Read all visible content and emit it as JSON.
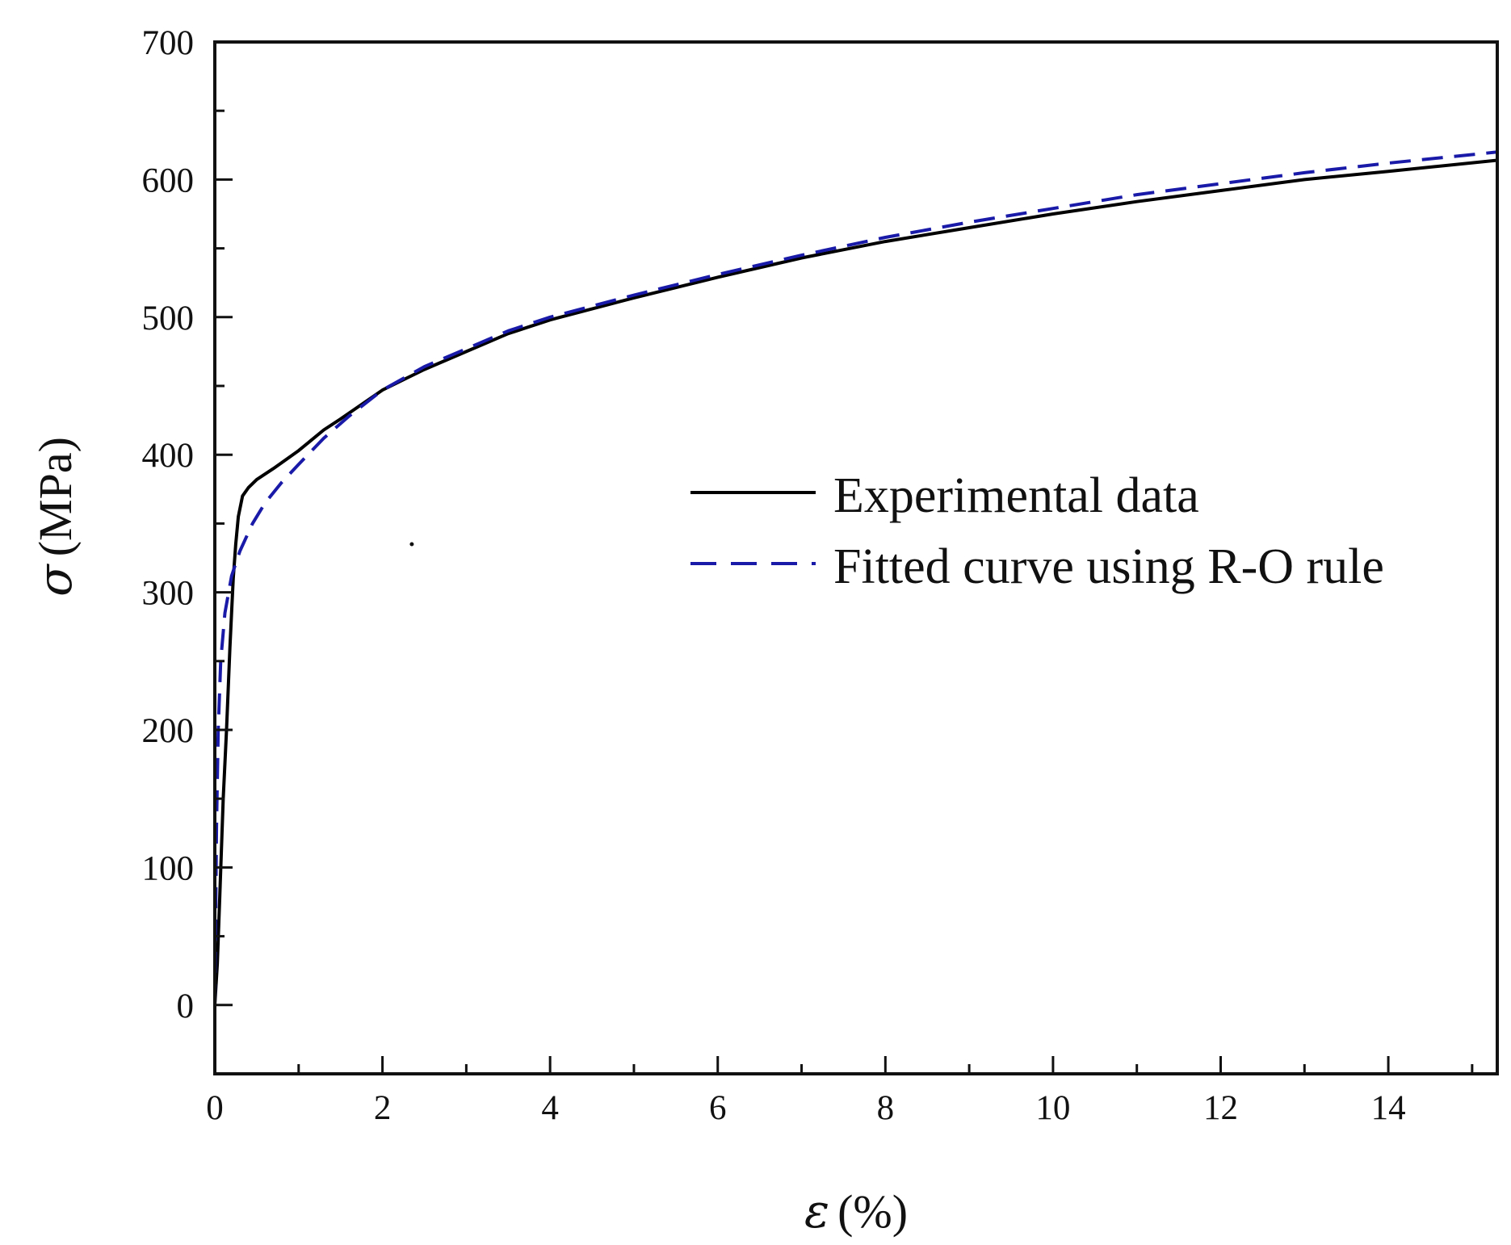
{
  "chart_data": {
    "type": "line",
    "title": "",
    "xlabel": {
      "symbol": "ε",
      "unit": "(%)"
    },
    "ylabel": {
      "symbol": "σ",
      "unit": "(MPa)"
    },
    "xlim": [
      0,
      15.3
    ],
    "ylim": [
      -50,
      700
    ],
    "x_ticks": [
      {
        "value": 0,
        "label": "0"
      },
      {
        "value": 2,
        "label": "2"
      },
      {
        "value": 4,
        "label": "4"
      },
      {
        "value": 6,
        "label": "6"
      },
      {
        "value": 8,
        "label": "8"
      },
      {
        "value": 10,
        "label": "10"
      },
      {
        "value": 12,
        "label": "12"
      },
      {
        "value": 14,
        "label": "14"
      }
    ],
    "x_minor_ticks": [
      1,
      3,
      5,
      7,
      9,
      11,
      13,
      15
    ],
    "y_ticks": [
      {
        "value": 0,
        "label": "0"
      },
      {
        "value": 100,
        "label": "100"
      },
      {
        "value": 200,
        "label": "200"
      },
      {
        "value": 300,
        "label": "300"
      },
      {
        "value": 400,
        "label": "400"
      },
      {
        "value": 500,
        "label": "500"
      },
      {
        "value": 600,
        "label": "600"
      },
      {
        "value": 700,
        "label": "700"
      }
    ],
    "y_minor_ticks": [
      50,
      150,
      250,
      350,
      450,
      550,
      650
    ],
    "grid": false,
    "legend_position": "center-right",
    "series": [
      {
        "name": "Experimental data",
        "color": "#000000",
        "style": "solid",
        "points": [
          [
            0.0,
            0
          ],
          [
            0.03,
            30
          ],
          [
            0.06,
            80
          ],
          [
            0.1,
            150
          ],
          [
            0.14,
            200
          ],
          [
            0.18,
            260
          ],
          [
            0.22,
            310
          ],
          [
            0.25,
            335
          ],
          [
            0.28,
            355
          ],
          [
            0.33,
            370
          ],
          [
            0.4,
            376
          ],
          [
            0.5,
            382
          ],
          [
            0.7,
            390
          ],
          [
            1.0,
            403
          ],
          [
            1.3,
            418
          ],
          [
            1.5,
            426
          ],
          [
            2.0,
            447
          ],
          [
            2.5,
            462
          ],
          [
            3.0,
            475
          ],
          [
            3.5,
            488
          ],
          [
            4.0,
            498
          ],
          [
            5.0,
            514
          ],
          [
            6.0,
            529
          ],
          [
            7.0,
            543
          ],
          [
            8.0,
            555
          ],
          [
            9.0,
            565
          ],
          [
            10.0,
            575
          ],
          [
            11.0,
            584
          ],
          [
            12.0,
            592
          ],
          [
            13.0,
            600
          ],
          [
            14.0,
            606
          ],
          [
            15.3,
            614
          ]
        ]
      },
      {
        "name": "Fitted curve using R-O rule",
        "color": "#1a1aa8",
        "style": "dashed",
        "points": [
          [
            0.0,
            0
          ],
          [
            0.01,
            60
          ],
          [
            0.02,
            130
          ],
          [
            0.04,
            200
          ],
          [
            0.07,
            250
          ],
          [
            0.12,
            285
          ],
          [
            0.2,
            312
          ],
          [
            0.3,
            330
          ],
          [
            0.45,
            350
          ],
          [
            0.6,
            365
          ],
          [
            0.8,
            380
          ],
          [
            1.0,
            393
          ],
          [
            1.3,
            412
          ],
          [
            1.6,
            428
          ],
          [
            2.0,
            447
          ],
          [
            2.5,
            464
          ],
          [
            3.0,
            477
          ],
          [
            3.5,
            490
          ],
          [
            4.0,
            500
          ],
          [
            5.0,
            516
          ],
          [
            6.0,
            531
          ],
          [
            7.0,
            545
          ],
          [
            8.0,
            558
          ],
          [
            9.0,
            569
          ],
          [
            10.0,
            579
          ],
          [
            11.0,
            589
          ],
          [
            12.0,
            597
          ],
          [
            13.0,
            605
          ],
          [
            14.0,
            612
          ],
          [
            15.3,
            620
          ]
        ]
      }
    ],
    "stray_marks": [
      {
        "x": 2.35,
        "y": 335
      }
    ]
  }
}
